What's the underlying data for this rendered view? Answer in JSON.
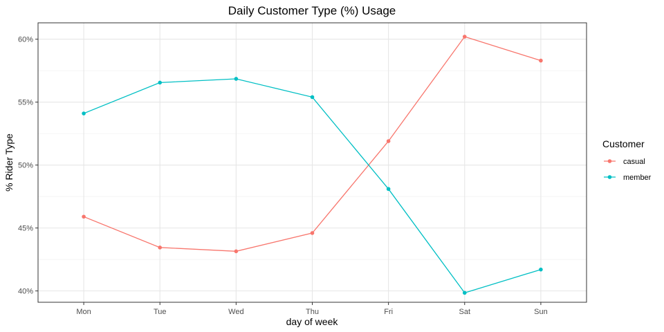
{
  "chart_data": {
    "type": "line",
    "title": "Daily Customer Type (%) Usage",
    "xlabel": "day of week",
    "ylabel": "% Rider Type",
    "categories": [
      "Mon",
      "Tue",
      "Wed",
      "Thu",
      "Fri",
      "Sat",
      "Sun"
    ],
    "ylim": [
      39.1,
      61.3
    ],
    "y_ticks": [
      40,
      45,
      50,
      55,
      60
    ],
    "y_tick_labels": [
      "40%",
      "45%",
      "50%",
      "55%",
      "60%"
    ],
    "grid": true,
    "legend": {
      "title": "Customer",
      "position": "right"
    },
    "series": [
      {
        "name": "casual",
        "color": "#F8766D",
        "values": [
          45.9,
          43.45,
          43.15,
          44.6,
          51.9,
          60.2,
          58.3
        ]
      },
      {
        "name": "member",
        "color": "#00BFC4",
        "values": [
          54.1,
          56.55,
          56.85,
          55.4,
          48.1,
          39.85,
          41.7
        ]
      }
    ]
  }
}
